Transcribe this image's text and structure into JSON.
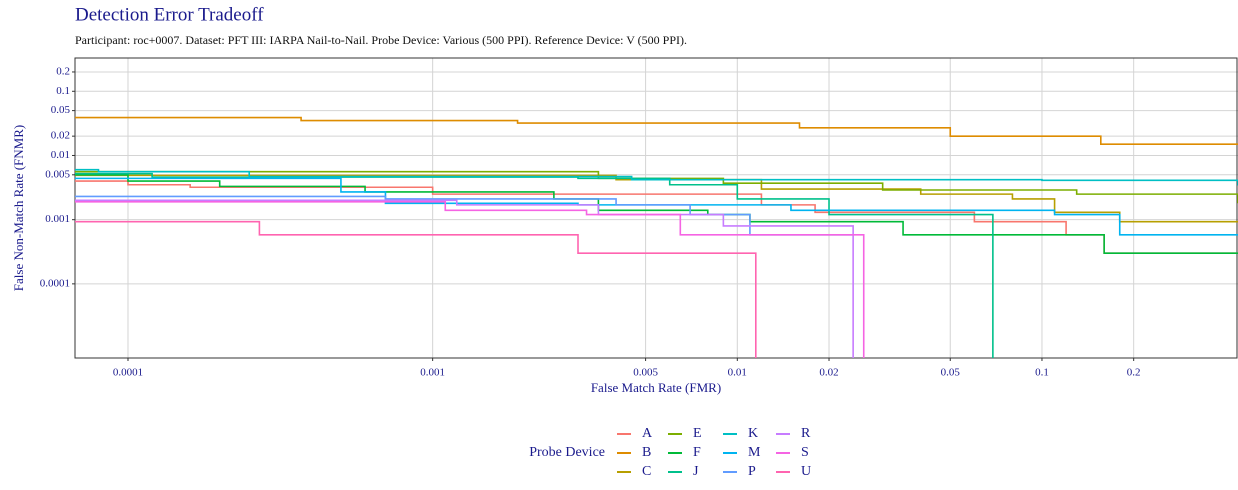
{
  "chart_data": {
    "type": "step",
    "title": "Detection Error Tradeoff",
    "subtitle": "Participant: roc+0007. Dataset: PFT III: IARPA Nail-to-Nail. Probe Device: Various (500 PPI). Reference Device: V (500 PPI).",
    "x_label": "False Match Rate (FMR)",
    "y_label": "False Non-Match Rate (FNMR)",
    "legend_title": "Probe Device",
    "xscale": "log",
    "yscale": "log",
    "grid": true,
    "xlim": [
      6.7e-05,
      0.44
    ],
    "ylim": [
      7e-06,
      0.33
    ],
    "xticks": [
      0.0001,
      0.001,
      0.005,
      0.01,
      0.02,
      0.05,
      0.1,
      0.2
    ],
    "yticks": [
      0.0001,
      0.001,
      0.005,
      0.01,
      0.02,
      0.05,
      0.1,
      0.2
    ],
    "series": [
      {
        "name": "A",
        "color": "#F8766D",
        "x": [
          6.7e-05,
          0.0001,
          0.00016,
          0.001,
          0.008,
          0.012,
          0.018,
          0.06,
          0.12,
          0.16,
          0.44
        ],
        "values": [
          0.004,
          0.0035,
          0.0032,
          0.0025,
          0.0025,
          0.0017,
          0.0013,
          0.00093,
          0.00058,
          0.0003,
          0.0003
        ]
      },
      {
        "name": "B",
        "color": "#DE8C00",
        "x": [
          6.7e-05,
          0.00037,
          0.0019,
          0.016,
          0.05,
          0.156,
          0.44
        ],
        "values": [
          0.039,
          0.035,
          0.032,
          0.027,
          0.02,
          0.015,
          0.015
        ]
      },
      {
        "name": "C",
        "color": "#B79F00",
        "x": [
          6.7e-05,
          0.004,
          0.012,
          0.04,
          0.08,
          0.11,
          0.18,
          0.44
        ],
        "values": [
          0.0049,
          0.0042,
          0.003,
          0.0025,
          0.0021,
          0.0013,
          0.00093,
          0.00093
        ]
      },
      {
        "name": "E",
        "color": "#7CAE00",
        "x": [
          6.7e-05,
          0.0035,
          0.009,
          0.03,
          0.13,
          0.44
        ],
        "values": [
          0.0056,
          0.0044,
          0.0037,
          0.0029,
          0.0025,
          0.0018
        ]
      },
      {
        "name": "F",
        "color": "#00BA38",
        "x": [
          6.7e-05,
          0.0001,
          0.0002,
          0.0006,
          0.0025,
          0.0035,
          0.008,
          0.011,
          0.035,
          0.16,
          0.44
        ],
        "values": [
          0.005,
          0.004,
          0.0033,
          0.0027,
          0.0021,
          0.0014,
          0.0012,
          0.00093,
          0.00058,
          0.0003,
          0.0003
        ]
      },
      {
        "name": "J",
        "color": "#00C08B",
        "x": [
          6.7e-05,
          0.00012,
          0.003,
          0.006,
          0.01,
          0.02,
          0.069
        ],
        "values": [
          0.0052,
          0.0046,
          0.0044,
          0.0035,
          0.0021,
          0.0012,
          0
        ]
      },
      {
        "name": "K",
        "color": "#00BFC4",
        "x": [
          6.7e-05,
          8e-05,
          0.00025,
          0.0045,
          0.1,
          0.44
        ],
        "values": [
          0.006,
          0.0056,
          0.0047,
          0.0042,
          0.0041,
          0.0034
        ]
      },
      {
        "name": "M",
        "color": "#00B4F0",
        "x": [
          6.7e-05,
          0.0005,
          0.0007,
          0.003,
          0.015,
          0.11,
          0.18,
          0.44
        ],
        "values": [
          0.0044,
          0.0027,
          0.0018,
          0.0017,
          0.0014,
          0.0012,
          0.00058,
          0.00058
        ]
      },
      {
        "name": "P",
        "color": "#619CFF",
        "x": [
          6.7e-05,
          0.0007,
          0.004,
          0.007,
          0.011,
          0.024
        ],
        "values": [
          0.0023,
          0.0021,
          0.0017,
          0.0012,
          0.00058,
          0.00058
        ]
      },
      {
        "name": "R",
        "color": "#C77CFF",
        "x": [
          6.7e-05,
          0.0012,
          0.0035,
          0.009,
          0.024
        ],
        "values": [
          0.002,
          0.0017,
          0.0012,
          0.0008,
          0
        ]
      },
      {
        "name": "S",
        "color": "#F564E3",
        "x": [
          6.7e-05,
          0.0011,
          0.0032,
          0.0065,
          0.026
        ],
        "values": [
          0.0019,
          0.0014,
          0.0012,
          0.00058,
          0
        ]
      },
      {
        "name": "U",
        "color": "#FF64B0",
        "x": [
          6.7e-05,
          0.00027,
          0.003,
          0.0115
        ],
        "values": [
          0.00093,
          0.00058,
          0.0003,
          0
        ]
      }
    ]
  }
}
